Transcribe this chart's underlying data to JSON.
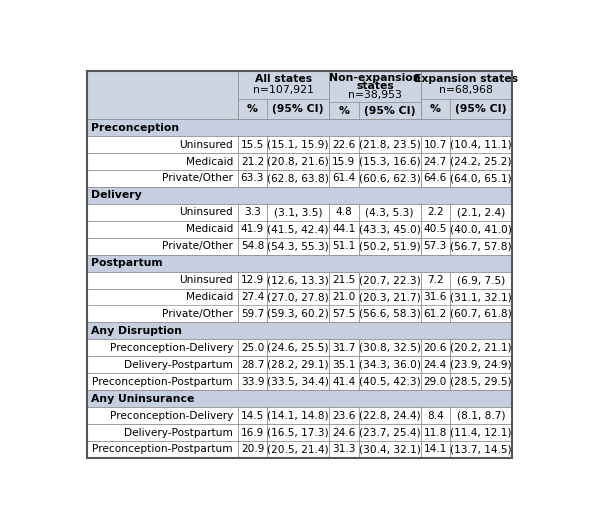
{
  "sections": [
    {
      "name": "Preconception",
      "rows": [
        [
          "Uninsured",
          "15.5",
          "(15.1, 15.9)",
          "22.6",
          "(21.8, 23.5)",
          "10.7",
          "(10.4, 11.1)"
        ],
        [
          "Medicaid",
          "21.2",
          "(20.8, 21.6)",
          "15.9",
          "(15.3, 16.6)",
          "24.7",
          "(24.2, 25.2)"
        ],
        [
          "Private/Other",
          "63.3",
          "(62.8, 63.8)",
          "61.4",
          "(60.6, 62.3)",
          "64.6",
          "(64.0, 65.1)"
        ]
      ]
    },
    {
      "name": "Delivery",
      "rows": [
        [
          "Uninsured",
          "3.3",
          "(3.1, 3.5)",
          "4.8",
          "(4.3, 5.3)",
          "2.2",
          "(2.1, 2.4)"
        ],
        [
          "Medicaid",
          "41.9",
          "(41.5, 42.4)",
          "44.1",
          "(43.3, 45.0)",
          "40.5",
          "(40.0, 41.0)"
        ],
        [
          "Private/Other",
          "54.8",
          "(54.3, 55.3)",
          "51.1",
          "(50.2, 51.9)",
          "57.3",
          "(56.7, 57.8)"
        ]
      ]
    },
    {
      "name": "Postpartum",
      "rows": [
        [
          "Uninsured",
          "12.9",
          "(12.6, 13.3)",
          "21.5",
          "(20.7, 22.3)",
          "7.2",
          "(6.9, 7.5)"
        ],
        [
          "Medicaid",
          "27.4",
          "(27.0, 27.8)",
          "21.0",
          "(20.3, 21.7)",
          "31.6",
          "(31.1, 32.1)"
        ],
        [
          "Private/Other",
          "59.7",
          "(59.3, 60.2)",
          "57.5",
          "(56.6, 58.3)",
          "61.2",
          "(60.7, 61.8)"
        ]
      ]
    },
    {
      "name": "Any Disruption",
      "rows": [
        [
          "Preconception-Delivery",
          "25.0",
          "(24.6, 25.5)",
          "31.7",
          "(30.8, 32.5)",
          "20.6",
          "(20.2, 21.1)"
        ],
        [
          "Delivery-Postpartum",
          "28.7",
          "(28.2, 29.1)",
          "35.1",
          "(34.3, 36.0)",
          "24.4",
          "(23.9, 24.9)"
        ],
        [
          "Preconception-Postpartum",
          "33.9",
          "(33.5, 34.4)",
          "41.4",
          "(40.5, 42.3)",
          "29.0",
          "(28.5, 29.5)"
        ]
      ]
    },
    {
      "name": "Any Uninsurance",
      "rows": [
        [
          "Preconception-Delivery",
          "14.5",
          "(14.1, 14.8)",
          "23.6",
          "(22.8, 24.4)",
          "8.4",
          "(8.1, 8.7)"
        ],
        [
          "Delivery-Postpartum",
          "16.9",
          "(16.5, 17.3)",
          "24.6",
          "(23.7, 25.4)",
          "11.8",
          "(11.4, 12.1)"
        ],
        [
          "Preconception-Postpartum",
          "20.9",
          "(20.5, 21.4)",
          "31.3",
          "(30.4, 32.1)",
          "14.1",
          "(13.7, 14.5)"
        ]
      ]
    }
  ],
  "col_group_headers": [
    "All states",
    "Non-expansion\nstates",
    "Expansion states"
  ],
  "col_group_n": [
    "n=107,921",
    "n=38,953",
    "n=68,968"
  ],
  "header_bg": "#cdd5e3",
  "section_bg": "#c5cfe0",
  "row_bg": "#ffffff",
  "border_color": "#888888",
  "outer_border": "#555555",
  "header_fontsize": 7.8,
  "cell_fontsize": 7.6,
  "label_fontsize": 7.6
}
